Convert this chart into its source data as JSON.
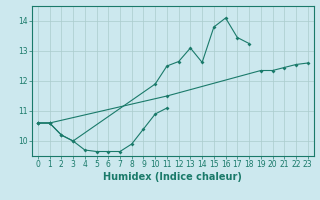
{
  "background_color": "#cce8ee",
  "grid_color": "#aacccc",
  "line_color": "#1a7a6a",
  "line1_x": [
    0,
    1,
    2,
    3,
    4,
    5,
    6,
    7,
    8,
    9,
    10,
    11
  ],
  "line1_y": [
    10.6,
    10.6,
    10.2,
    10.0,
    9.7,
    9.65,
    9.65,
    9.65,
    9.9,
    10.4,
    10.9,
    11.1
  ],
  "line2_x": [
    0,
    1,
    2,
    3,
    10,
    11,
    12,
    13,
    14,
    15,
    16,
    17,
    18
  ],
  "line2_y": [
    10.6,
    10.6,
    10.2,
    10.0,
    11.9,
    12.5,
    12.65,
    13.1,
    12.62,
    13.8,
    14.1,
    13.45,
    13.25
  ],
  "line3_x": [
    0,
    23
  ],
  "line3_y": [
    10.6,
    12.6
  ],
  "line3b_x": [
    0,
    1,
    11,
    19,
    20,
    21,
    22,
    23
  ],
  "line3b_y": [
    10.6,
    10.6,
    11.5,
    12.35,
    12.35,
    12.45,
    12.55,
    12.6
  ],
  "xlim_min": -0.5,
  "xlim_max": 23.5,
  "ylim_min": 9.5,
  "ylim_max": 14.5,
  "yticks": [
    10,
    11,
    12,
    13,
    14
  ],
  "xticks": [
    0,
    1,
    2,
    3,
    4,
    5,
    6,
    7,
    8,
    9,
    10,
    11,
    12,
    13,
    14,
    15,
    16,
    17,
    18,
    19,
    20,
    21,
    22,
    23
  ],
  "xlabel": "Humidex (Indice chaleur)",
  "xlabel_fontsize": 7,
  "tick_fontsize": 5.5,
  "linewidth": 0.8,
  "markersize": 2.0
}
